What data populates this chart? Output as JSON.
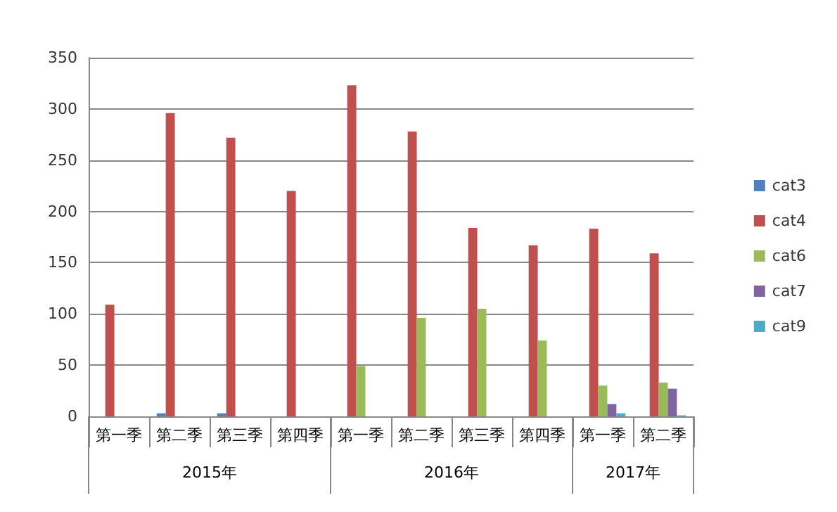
{
  "chart_data": {
    "type": "bar",
    "categories": [
      "第一季",
      "第二季",
      "第三季",
      "第四季",
      "第一季",
      "第二季",
      "第三季",
      "第四季",
      "第一季",
      "第二季"
    ],
    "series": [
      {
        "name": "cat3",
        "color": "#4f81bd",
        "values": [
          null,
          3,
          3,
          null,
          null,
          null,
          null,
          null,
          null,
          null
        ]
      },
      {
        "name": "cat4",
        "color": "#c0504d",
        "values": [
          109,
          296,
          272,
          220,
          323,
          278,
          184,
          167,
          183,
          159
        ]
      },
      {
        "name": "cat6",
        "color": "#9bbb59",
        "values": [
          null,
          null,
          null,
          null,
          49,
          96,
          105,
          74,
          30,
          33
        ]
      },
      {
        "name": "cat7",
        "color": "#8064a2",
        "values": [
          null,
          null,
          null,
          null,
          null,
          null,
          null,
          null,
          12,
          27
        ]
      },
      {
        "name": "cat9",
        "color": "#4bacc6",
        "values": [
          null,
          null,
          null,
          null,
          null,
          null,
          null,
          null,
          3,
          1
        ]
      }
    ],
    "annotations": [
      "2015年",
      "2016年",
      "2017年"
    ],
    "ylim": [
      0,
      350
    ],
    "yticks": [
      0,
      50,
      100,
      150,
      200,
      250,
      300,
      350
    ],
    "grid": "y",
    "legend": "right"
  }
}
